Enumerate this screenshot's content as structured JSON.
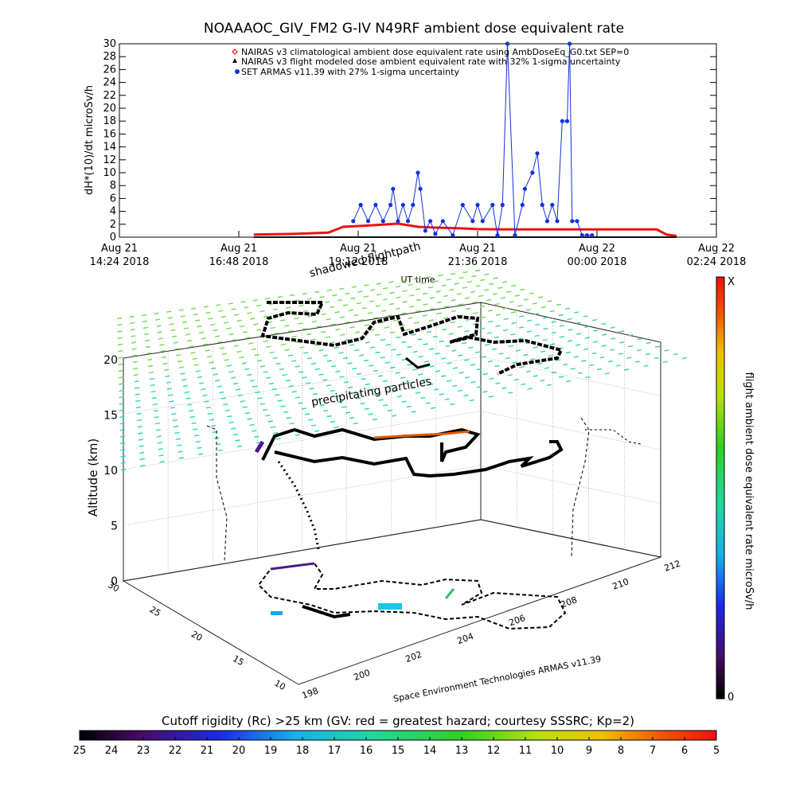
{
  "title": "NOAAAOC_GIV_FM2 G-IV    N49RF  ambient dose equivalent rate",
  "colors": {
    "nairas_clim": "#ee1111",
    "nairas_flight": "#111111",
    "armas": "#1432d8"
  },
  "chart_data": [
    {
      "type": "line",
      "ylabel": "dH*(10)/dt microSv/h",
      "xlabel": "UT time",
      "ylim": [
        0,
        30
      ],
      "yticks": [
        0,
        2,
        4,
        6,
        8,
        10,
        12,
        14,
        16,
        18,
        20,
        22,
        24,
        26,
        28,
        30
      ],
      "xlim_hours": [
        0,
        12
      ],
      "xticks": [
        {
          "line1": "Aug 21",
          "line2": "14:24 2018"
        },
        {
          "line1": "Aug 21",
          "line2": "16:48 2018"
        },
        {
          "line1": "Aug 21",
          "line2": "19:12 2018"
        },
        {
          "line1": "Aug 21",
          "line2": "21:36 2018"
        },
        {
          "line1": "Aug 22",
          "line2": "00:00 2018"
        },
        {
          "line1": "Aug 22",
          "line2": "02:24 2018"
        }
      ],
      "legend": [
        "NAIRAS v3 climatological ambient dose equivalent rate using AmbDoseEq_G0.txt SEP=0",
        "NAIRAS v3 flight modeled dose ambient equivalent rate with 32% 1-sigma uncertainty",
        "SET ARMAS v11.39 with 27% 1-sigma uncertainty"
      ],
      "legend_position": "top-right",
      "series": [
        {
          "name": "NAIRAS v3 climatological ambient dose equivalent rate using AmbDoseEq_G0.txt SEP=0",
          "x_hours": [
            2.7,
            3.5,
            4.2,
            4.5,
            5.0,
            5.6,
            6.0,
            6.3,
            6.8,
            7.2,
            8.0,
            9.0,
            10.0,
            10.8,
            11.0,
            11.2
          ],
          "y": [
            0.4,
            0.5,
            0.7,
            1.6,
            1.8,
            2.1,
            1.6,
            1.5,
            1.4,
            1.25,
            1.2,
            1.2,
            1.2,
            1.2,
            0.4,
            0.2
          ]
        },
        {
          "name": "NAIRAS v3 flight modeled dose ambient equivalent rate with 32% 1-sigma uncertainty",
          "x_hours": [
            2.7,
            11.2
          ],
          "y": [
            0.0,
            0.0
          ]
        },
        {
          "name": "SET ARMAS v11.39 with 27% 1-sigma uncertainty",
          "x_hours": [
            4.7,
            4.85,
            5.0,
            5.15,
            5.3,
            5.45,
            5.5,
            5.6,
            5.7,
            5.8,
            5.9,
            6.0,
            6.05,
            6.15,
            6.25,
            6.35,
            6.5,
            6.7,
            6.9,
            7.1,
            7.2,
            7.3,
            7.5,
            7.6,
            7.7,
            7.8,
            7.95,
            8.1,
            8.15,
            8.3,
            8.4,
            8.5,
            8.6,
            8.7,
            8.8,
            8.9,
            9.0,
            9.05,
            9.1,
            9.2,
            9.3,
            9.4,
            9.5
          ],
          "y": [
            2.5,
            5.0,
            2.5,
            5.0,
            2.5,
            5.0,
            7.5,
            2.5,
            5.0,
            2.5,
            5.0,
            10.0,
            7.5,
            1.0,
            2.5,
            0.5,
            2.5,
            0.3,
            5.0,
            2.5,
            5.0,
            2.5,
            5.0,
            0.3,
            5.0,
            30.0,
            0.3,
            5.0,
            7.5,
            10.0,
            13.0,
            5.0,
            2.5,
            5.0,
            2.5,
            18.0,
            18.0,
            30.0,
            2.5,
            2.5,
            0.3,
            0.3,
            0.3
          ]
        }
      ],
      "markers_text": [
        "shadowed flightpath"
      ]
    },
    {
      "type": "scatter",
      "title": "",
      "zlabel": "Altitude (km)",
      "zticks": [
        0,
        5,
        10,
        15,
        20
      ],
      "xticks": [
        198,
        200,
        202,
        204,
        206,
        208,
        210,
        212
      ],
      "yticks": [
        10,
        15,
        20,
        25,
        30
      ],
      "labels": {
        "flightpath": "shadowed flightpath",
        "particles": "precipitating particles",
        "credit": "Space Environment Technologies ARMAS v11.39"
      },
      "colorbar": {
        "label": "flight ambient dose equivalent rate microSv/h",
        "top": "X",
        "bottom": "0"
      }
    },
    {
      "type": "heatmap",
      "title": "Cutoff rigidity (Rc) >25 km (GV: red = greatest hazard; courtesy SSSRC; Kp=2)",
      "ticks": [
        25,
        24,
        23,
        22,
        21,
        20,
        19,
        18,
        17,
        16,
        15,
        14,
        13,
        12,
        11,
        10,
        9,
        8,
        7,
        6,
        5
      ]
    }
  ]
}
